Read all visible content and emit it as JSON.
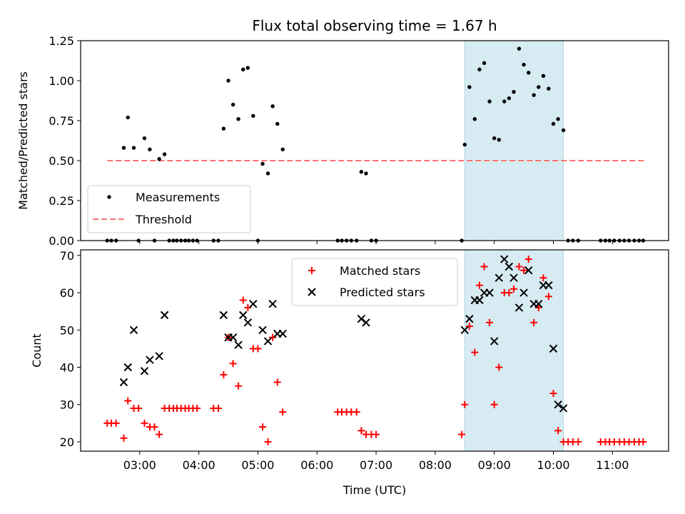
{
  "figure": {
    "title": "Flux total observing time = 1.67 h",
    "xlabel": "Time (UTC)"
  },
  "chart_data": [
    {
      "type": "scatter",
      "title": "Flux total observing time = 1.67 h",
      "ylabel": "Matched/Predicted stars",
      "xlabel": "",
      "x_units": "hours UTC",
      "xlim": [
        2.0,
        11.95
      ],
      "ylim": [
        0.0,
        1.25
      ],
      "yticks": [
        0.0,
        0.25,
        0.5,
        0.75,
        1.0,
        1.25
      ],
      "ytick_labels": [
        "0.00",
        "0.25",
        "0.50",
        "0.75",
        "1.00",
        "1.25"
      ],
      "shaded_region": {
        "x": [
          8.5,
          10.17
        ],
        "color": "#add8e6"
      },
      "legend": {
        "position": "lower-left",
        "entries": [
          "Measurements",
          "Threshold"
        ]
      },
      "threshold": {
        "name": "Threshold",
        "y": 0.5,
        "x": [
          2.45,
          11.55
        ],
        "color": "#ff7070"
      },
      "series": [
        {
          "name": "Measurements",
          "color": "#000000",
          "points": [
            [
              2.45,
              0.0
            ],
            [
              2.52,
              0.0
            ],
            [
              2.6,
              0.0
            ],
            [
              2.73,
              0.58
            ],
            [
              2.8,
              0.77
            ],
            [
              2.9,
              0.58
            ],
            [
              2.98,
              0.0
            ],
            [
              3.08,
              0.64
            ],
            [
              3.17,
              0.57
            ],
            [
              3.25,
              0.0
            ],
            [
              3.33,
              0.51
            ],
            [
              3.42,
              0.54
            ],
            [
              3.5,
              0.0
            ],
            [
              3.57,
              0.0
            ],
            [
              3.63,
              0.0
            ],
            [
              3.7,
              0.0
            ],
            [
              3.77,
              0.0
            ],
            [
              3.83,
              0.0
            ],
            [
              3.9,
              0.0
            ],
            [
              3.97,
              0.0
            ],
            [
              4.25,
              0.0
            ],
            [
              4.33,
              0.0
            ],
            [
              4.42,
              0.7
            ],
            [
              4.5,
              1.0
            ],
            [
              4.58,
              0.85
            ],
            [
              4.67,
              0.76
            ],
            [
              4.75,
              1.07
            ],
            [
              4.83,
              1.08
            ],
            [
              4.92,
              0.78
            ],
            [
              5.0,
              0.0
            ],
            [
              5.08,
              0.48
            ],
            [
              5.17,
              0.42
            ],
            [
              5.25,
              0.84
            ],
            [
              5.33,
              0.73
            ],
            [
              5.42,
              0.57
            ],
            [
              6.35,
              0.0
            ],
            [
              6.42,
              0.0
            ],
            [
              6.5,
              0.0
            ],
            [
              6.58,
              0.0
            ],
            [
              6.67,
              0.0
            ],
            [
              6.75,
              0.43
            ],
            [
              6.83,
              0.42
            ],
            [
              6.92,
              0.0
            ],
            [
              7.0,
              0.0
            ],
            [
              8.45,
              0.0
            ],
            [
              8.5,
              0.6
            ],
            [
              8.58,
              0.96
            ],
            [
              8.67,
              0.76
            ],
            [
              8.75,
              1.07
            ],
            [
              8.83,
              1.11
            ],
            [
              8.92,
              0.87
            ],
            [
              9.0,
              0.64
            ],
            [
              9.08,
              0.63
            ],
            [
              9.17,
              0.87
            ],
            [
              9.25,
              0.89
            ],
            [
              9.33,
              0.93
            ],
            [
              9.42,
              1.2
            ],
            [
              9.5,
              1.1
            ],
            [
              9.58,
              1.05
            ],
            [
              9.67,
              0.91
            ],
            [
              9.75,
              0.96
            ],
            [
              9.83,
              1.03
            ],
            [
              9.92,
              0.95
            ],
            [
              10.0,
              0.73
            ],
            [
              10.08,
              0.76
            ],
            [
              10.17,
              0.69
            ],
            [
              10.25,
              0.0
            ],
            [
              10.33,
              0.0
            ],
            [
              10.42,
              0.0
            ],
            [
              10.8,
              0.0
            ],
            [
              10.88,
              0.0
            ],
            [
              10.95,
              0.0
            ],
            [
              11.03,
              0.0
            ],
            [
              11.12,
              0.0
            ],
            [
              11.2,
              0.0
            ],
            [
              11.28,
              0.0
            ],
            [
              11.37,
              0.0
            ],
            [
              11.45,
              0.0
            ],
            [
              11.52,
              0.0
            ]
          ]
        }
      ]
    },
    {
      "type": "scatter",
      "title": "",
      "ylabel": "Count",
      "xlabel": "Time (UTC)",
      "x_units": "hours UTC",
      "xlim": [
        2.0,
        11.95
      ],
      "ylim": [
        17.5,
        71.5
      ],
      "yticks": [
        20,
        30,
        40,
        50,
        60,
        70
      ],
      "ytick_labels": [
        "20",
        "30",
        "40",
        "50",
        "60",
        "70"
      ],
      "xticks": [
        3,
        4,
        5,
        6,
        7,
        8,
        9,
        10,
        11
      ],
      "xtick_labels": [
        "03:00",
        "04:00",
        "05:00",
        "06:00",
        "07:00",
        "08:00",
        "09:00",
        "10:00",
        "11:00"
      ],
      "shaded_region": {
        "x": [
          8.5,
          10.17
        ],
        "color": "#add8e6"
      },
      "legend": {
        "position": "upper-center",
        "entries": [
          "Matched stars",
          "Predicted stars"
        ]
      },
      "series": [
        {
          "name": "Matched stars",
          "marker": "plus",
          "color": "#ff0000",
          "points": [
            [
              2.45,
              25
            ],
            [
              2.52,
              25
            ],
            [
              2.6,
              25
            ],
            [
              2.73,
              21
            ],
            [
              2.8,
              31
            ],
            [
              2.9,
              29
            ],
            [
              2.98,
              29
            ],
            [
              3.08,
              25
            ],
            [
              3.17,
              24
            ],
            [
              3.25,
              24
            ],
            [
              3.33,
              22
            ],
            [
              3.42,
              29
            ],
            [
              3.5,
              29
            ],
            [
              3.57,
              29
            ],
            [
              3.63,
              29
            ],
            [
              3.7,
              29
            ],
            [
              3.77,
              29
            ],
            [
              3.83,
              29
            ],
            [
              3.9,
              29
            ],
            [
              3.97,
              29
            ],
            [
              4.25,
              29
            ],
            [
              4.33,
              29
            ],
            [
              4.42,
              38
            ],
            [
              4.5,
              48
            ],
            [
              4.58,
              41
            ],
            [
              4.67,
              35
            ],
            [
              4.75,
              58
            ],
            [
              4.83,
              56
            ],
            [
              4.92,
              45
            ],
            [
              5.0,
              45
            ],
            [
              5.08,
              24
            ],
            [
              5.17,
              20
            ],
            [
              5.25,
              48
            ],
            [
              5.33,
              36
            ],
            [
              5.42,
              28
            ],
            [
              6.35,
              28
            ],
            [
              6.42,
              28
            ],
            [
              6.5,
              28
            ],
            [
              6.58,
              28
            ],
            [
              6.67,
              28
            ],
            [
              6.75,
              23
            ],
            [
              6.83,
              22
            ],
            [
              6.92,
              22
            ],
            [
              7.0,
              22
            ],
            [
              8.45,
              22
            ],
            [
              8.5,
              30
            ],
            [
              8.58,
              51
            ],
            [
              8.67,
              44
            ],
            [
              8.75,
              62
            ],
            [
              8.83,
              67
            ],
            [
              8.92,
              52
            ],
            [
              9.0,
              30
            ],
            [
              9.08,
              40
            ],
            [
              9.17,
              60
            ],
            [
              9.25,
              60
            ],
            [
              9.33,
              61
            ],
            [
              9.42,
              67
            ],
            [
              9.5,
              66
            ],
            [
              9.58,
              69
            ],
            [
              9.67,
              52
            ],
            [
              9.75,
              56
            ],
            [
              9.83,
              64
            ],
            [
              9.92,
              59
            ],
            [
              10.0,
              33
            ],
            [
              10.08,
              23
            ],
            [
              10.17,
              20
            ],
            [
              10.25,
              20
            ],
            [
              10.33,
              20
            ],
            [
              10.42,
              20
            ],
            [
              10.8,
              20
            ],
            [
              10.88,
              20
            ],
            [
              10.95,
              20
            ],
            [
              11.03,
              20
            ],
            [
              11.12,
              20
            ],
            [
              11.2,
              20
            ],
            [
              11.28,
              20
            ],
            [
              11.37,
              20
            ],
            [
              11.45,
              20
            ],
            [
              11.52,
              20
            ]
          ]
        },
        {
          "name": "Predicted stars",
          "marker": "x",
          "color": "#000000",
          "points": [
            [
              2.73,
              36
            ],
            [
              2.8,
              40
            ],
            [
              2.9,
              50
            ],
            [
              3.08,
              39
            ],
            [
              3.17,
              42
            ],
            [
              3.33,
              43
            ],
            [
              3.42,
              54
            ],
            [
              4.42,
              54
            ],
            [
              4.5,
              48
            ],
            [
              4.58,
              48
            ],
            [
              4.67,
              46
            ],
            [
              4.75,
              54
            ],
            [
              4.83,
              52
            ],
            [
              4.92,
              57
            ],
            [
              5.08,
              50
            ],
            [
              5.17,
              47
            ],
            [
              5.25,
              57
            ],
            [
              5.33,
              49
            ],
            [
              5.42,
              49
            ],
            [
              6.75,
              53
            ],
            [
              6.83,
              52
            ],
            [
              8.5,
              50
            ],
            [
              8.58,
              53
            ],
            [
              8.67,
              58
            ],
            [
              8.75,
              58
            ],
            [
              8.83,
              60
            ],
            [
              8.92,
              60
            ],
            [
              9.0,
              47
            ],
            [
              9.08,
              64
            ],
            [
              9.17,
              69
            ],
            [
              9.25,
              67
            ],
            [
              9.33,
              64
            ],
            [
              9.42,
              56
            ],
            [
              9.5,
              60
            ],
            [
              9.58,
              66
            ],
            [
              9.67,
              57
            ],
            [
              9.75,
              57
            ],
            [
              9.83,
              62
            ],
            [
              9.92,
              62
            ],
            [
              10.0,
              45
            ],
            [
              10.08,
              30
            ],
            [
              10.17,
              29
            ]
          ]
        }
      ]
    }
  ]
}
